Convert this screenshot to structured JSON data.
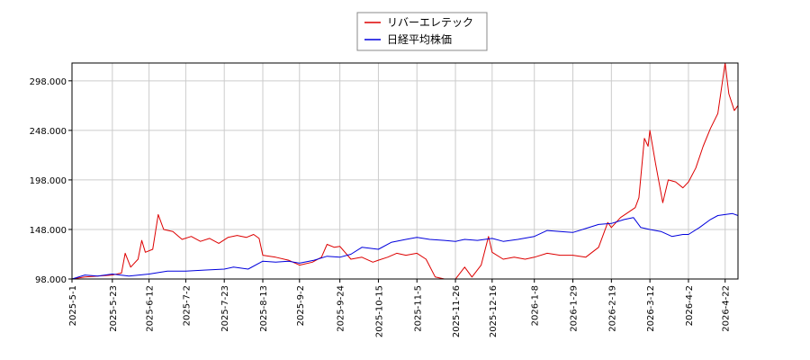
{
  "chart_data": {
    "type": "line",
    "title": "",
    "xlabel": "",
    "ylabel": "",
    "ylim": [
      98,
      316
    ],
    "grid": true,
    "legend_position": "top-center",
    "x_ticks": [
      "2025-5-1",
      "2025-5-23",
      "2025-6-12",
      "2025-7-2",
      "2025-7-23",
      "2025-8-13",
      "2025-9-2",
      "2025-9-24",
      "2025-10-15",
      "2025-11-5",
      "2025-11-26",
      "2025-12-16",
      "2026-1-8",
      "2026-1-29",
      "2026-2-19",
      "2026-3-12",
      "2026-4-2",
      "2026-4-22"
    ],
    "y_ticks": [
      "98.000",
      "148.000",
      "198.000",
      "248.000",
      "298.000"
    ],
    "series": [
      {
        "name": "リバーエレテック",
        "color": "#dd0000",
        "points": [
          [
            "2025-05-01",
            98
          ],
          [
            "2025-05-08",
            100
          ],
          [
            "2025-05-15",
            101
          ],
          [
            "2025-05-23",
            102
          ],
          [
            "2025-05-28",
            104
          ],
          [
            "2025-05-30",
            124
          ],
          [
            "2025-06-02",
            110
          ],
          [
            "2025-06-06",
            118
          ],
          [
            "2025-06-08",
            137
          ],
          [
            "2025-06-10",
            125
          ],
          [
            "2025-06-14",
            128
          ],
          [
            "2025-06-17",
            163
          ],
          [
            "2025-06-20",
            148
          ],
          [
            "2025-06-25",
            146
          ],
          [
            "2025-06-30",
            138
          ],
          [
            "2025-07-05",
            141
          ],
          [
            "2025-07-10",
            136
          ],
          [
            "2025-07-15",
            139
          ],
          [
            "2025-07-20",
            134
          ],
          [
            "2025-07-25",
            140
          ],
          [
            "2025-07-30",
            142
          ],
          [
            "2025-08-04",
            140
          ],
          [
            "2025-08-08",
            143
          ],
          [
            "2025-08-11",
            139
          ],
          [
            "2025-08-13",
            122
          ],
          [
            "2025-08-20",
            120
          ],
          [
            "2025-08-27",
            117
          ],
          [
            "2025-09-02",
            112
          ],
          [
            "2025-09-09",
            115
          ],
          [
            "2025-09-14",
            120
          ],
          [
            "2025-09-17",
            133
          ],
          [
            "2025-09-21",
            130
          ],
          [
            "2025-09-24",
            131
          ],
          [
            "2025-09-30",
            118
          ],
          [
            "2025-10-06",
            120
          ],
          [
            "2025-10-12",
            115
          ],
          [
            "2025-10-15",
            117
          ],
          [
            "2025-10-20",
            120
          ],
          [
            "2025-10-25",
            124
          ],
          [
            "2025-10-30",
            122
          ],
          [
            "2025-11-05",
            124
          ],
          [
            "2025-11-10",
            118
          ],
          [
            "2025-11-15",
            100
          ],
          [
            "2025-11-20",
            98
          ],
          [
            "2025-11-26",
            98
          ],
          [
            "2025-12-01",
            110
          ],
          [
            "2025-12-05",
            100
          ],
          [
            "2025-12-10",
            112
          ],
          [
            "2025-12-14",
            141
          ],
          [
            "2025-12-16",
            125
          ],
          [
            "2025-12-22",
            118
          ],
          [
            "2025-12-28",
            120
          ],
          [
            "2026-01-03",
            118
          ],
          [
            "2026-01-08",
            120
          ],
          [
            "2026-01-15",
            124
          ],
          [
            "2026-01-22",
            122
          ],
          [
            "2026-01-29",
            122
          ],
          [
            "2026-02-05",
            120
          ],
          [
            "2026-02-12",
            130
          ],
          [
            "2026-02-17",
            155
          ],
          [
            "2026-02-19",
            150
          ],
          [
            "2026-02-24",
            160
          ],
          [
            "2026-02-28",
            165
          ],
          [
            "2026-03-04",
            170
          ],
          [
            "2026-03-06",
            180
          ],
          [
            "2026-03-09",
            240
          ],
          [
            "2026-03-11",
            232
          ],
          [
            "2026-03-12",
            248
          ],
          [
            "2026-03-15",
            215
          ],
          [
            "2026-03-19",
            175
          ],
          [
            "2026-03-22",
            198
          ],
          [
            "2026-03-26",
            196
          ],
          [
            "2026-03-30",
            190
          ],
          [
            "2026-04-02",
            196
          ],
          [
            "2026-04-06",
            210
          ],
          [
            "2026-04-10",
            232
          ],
          [
            "2026-04-14",
            250
          ],
          [
            "2026-04-18",
            265
          ],
          [
            "2026-04-22",
            316
          ],
          [
            "2026-04-24",
            285
          ],
          [
            "2026-04-27",
            268
          ],
          [
            "2026-04-29",
            273
          ]
        ]
      },
      {
        "name": "日経平均株価",
        "color": "#0000dd",
        "points": [
          [
            "2025-05-01",
            98
          ],
          [
            "2025-05-08",
            102
          ],
          [
            "2025-05-15",
            101
          ],
          [
            "2025-05-23",
            103
          ],
          [
            "2025-06-01",
            101
          ],
          [
            "2025-06-12",
            103
          ],
          [
            "2025-06-22",
            106
          ],
          [
            "2025-07-02",
            106
          ],
          [
            "2025-07-12",
            107
          ],
          [
            "2025-07-23",
            108
          ],
          [
            "2025-07-28",
            110
          ],
          [
            "2025-08-05",
            108
          ],
          [
            "2025-08-13",
            116
          ],
          [
            "2025-08-20",
            115
          ],
          [
            "2025-08-27",
            116
          ],
          [
            "2025-09-02",
            114
          ],
          [
            "2025-09-10",
            117
          ],
          [
            "2025-09-17",
            121
          ],
          [
            "2025-09-24",
            120
          ],
          [
            "2025-09-30",
            123
          ],
          [
            "2025-10-06",
            130
          ],
          [
            "2025-10-15",
            128
          ],
          [
            "2025-10-22",
            135
          ],
          [
            "2025-10-30",
            138
          ],
          [
            "2025-11-05",
            140
          ],
          [
            "2025-11-12",
            138
          ],
          [
            "2025-11-20",
            137
          ],
          [
            "2025-11-26",
            136
          ],
          [
            "2025-12-01",
            138
          ],
          [
            "2025-12-08",
            137
          ],
          [
            "2025-12-16",
            139
          ],
          [
            "2025-12-22",
            136
          ],
          [
            "2025-12-30",
            138
          ],
          [
            "2026-01-08",
            141
          ],
          [
            "2026-01-15",
            147
          ],
          [
            "2026-01-22",
            146
          ],
          [
            "2026-01-29",
            145
          ],
          [
            "2026-02-05",
            149
          ],
          [
            "2026-02-12",
            153
          ],
          [
            "2026-02-19",
            154
          ],
          [
            "2026-02-26",
            158
          ],
          [
            "2026-03-03",
            160
          ],
          [
            "2026-03-07",
            150
          ],
          [
            "2026-03-12",
            148
          ],
          [
            "2026-03-18",
            146
          ],
          [
            "2026-03-24",
            141
          ],
          [
            "2026-03-30",
            143
          ],
          [
            "2026-04-02",
            143
          ],
          [
            "2026-04-08",
            150
          ],
          [
            "2026-04-14",
            158
          ],
          [
            "2026-04-18",
            162
          ],
          [
            "2026-04-22",
            163
          ],
          [
            "2026-04-26",
            164
          ],
          [
            "2026-04-29",
            162
          ]
        ]
      }
    ]
  }
}
